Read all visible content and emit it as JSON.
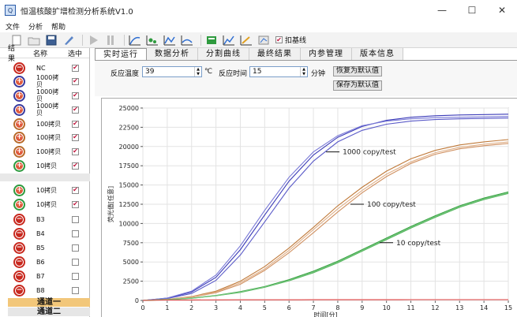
{
  "window": {
    "app_icon": "app-icon",
    "title": "恒温核酸扩增检测分析系统V1.0",
    "minimize": "—",
    "maximize": "☐",
    "close": "✕"
  },
  "menu": [
    "文件",
    "分析",
    "帮助"
  ],
  "toolbar": {
    "icons": [
      "new-file-icon",
      "open-folder-icon",
      "save-icon",
      "brush-icon",
      "play-icon",
      "pause-icon",
      "chart-icon-1",
      "chart-icon-2",
      "chart-icon-3",
      "chart-icon-4",
      "chart-icon-5",
      "chart-icon-6",
      "chart-icon-7",
      "chart-icon-8"
    ],
    "baseline_checked": "✔",
    "baseline_label": "扣基线"
  },
  "left_panel": {
    "headers": [
      "结果",
      "名称",
      "选中"
    ],
    "rows": [
      {
        "result": "minus",
        "color": "#c8281e",
        "name": "NC",
        "checked": "✔"
      },
      {
        "result": "plus",
        "color": "#3a3a9e",
        "name": "1000拷贝",
        "checked": "✔"
      },
      {
        "result": "plus",
        "color": "#3a3a9e",
        "name": "1000拷贝",
        "checked": "✔"
      },
      {
        "result": "plus",
        "color": "#3a3a9e",
        "name": "1000拷贝",
        "checked": "✔"
      },
      {
        "result": "plus",
        "color": "#b86a2a",
        "name": "100拷贝",
        "checked": "✔"
      },
      {
        "result": "plus",
        "color": "#b86a2a",
        "name": "100拷贝",
        "checked": "✔"
      },
      {
        "result": "plus",
        "color": "#b86a2a",
        "name": "100拷贝",
        "checked": "✔"
      },
      {
        "result": "plus",
        "color": "#2e9a3e",
        "name": "10拷贝",
        "checked": "✔"
      },
      {
        "result": "plus",
        "color": "#2e9a3e",
        "name": "10拷贝",
        "checked": "✔"
      },
      {
        "result": "plus",
        "color": "#2e9a3e",
        "name": "10拷贝",
        "checked": "✔"
      },
      {
        "result": "minus",
        "color": "#c8281e",
        "name": "B3",
        "checked": ""
      },
      {
        "result": "minus",
        "color": "#c8281e",
        "name": "B4",
        "checked": ""
      },
      {
        "result": "minus",
        "color": "#c8281e",
        "name": "B5",
        "checked": ""
      },
      {
        "result": "minus",
        "color": "#c8281e",
        "name": "B6",
        "checked": ""
      },
      {
        "result": "minus",
        "color": "#c8281e",
        "name": "B7",
        "checked": ""
      },
      {
        "result": "minus",
        "color": "#c8281e",
        "name": "B8",
        "checked": ""
      }
    ],
    "channel_tabs": [
      "通道一",
      "通道二"
    ],
    "channel_colors": [
      "#f2c77a",
      "#e6e6e6"
    ]
  },
  "tabs": [
    "实时运行",
    "数据分析",
    "分割曲线",
    "最终结果",
    "内参管理",
    "版本信息"
  ],
  "controls": {
    "temp_label": "反应温度",
    "temp_value": "39",
    "temp_unit": "℃",
    "time_label": "反应时间",
    "time_value": "15",
    "time_unit": "分钟",
    "restore_default": "恢复为默认值",
    "save_default": "保存为默认值"
  },
  "chart_data": {
    "type": "line",
    "xlabel": "时间[分]",
    "ylabel": "荧光值[任意]",
    "xlim": [
      0,
      15
    ],
    "ylim": [
      0,
      25000
    ],
    "xticks": [
      "0",
      "1",
      "2",
      "3",
      "4",
      "5",
      "6",
      "7",
      "8",
      "9",
      "10",
      "11",
      "12",
      "13",
      "14",
      "15"
    ],
    "yticks": [
      "0",
      "2500",
      "5000",
      "7500",
      "10000",
      "12500",
      "15000",
      "17500",
      "20000",
      "22500",
      "25000"
    ],
    "grid": true,
    "annotations": [
      {
        "text": "1000 copy/test",
        "x": 8.2,
        "y": 19300
      },
      {
        "text": "100 copy/test",
        "x": 9.2,
        "y": 12500
      },
      {
        "text": "10 copy/test",
        "x": 10.4,
        "y": 7500
      }
    ],
    "series": [
      {
        "color": "#3b3bb8",
        "x": [
          0,
          1,
          2,
          3,
          4,
          5,
          6,
          7,
          8,
          9,
          10,
          11,
          12,
          13,
          14,
          15
        ],
        "y": [
          0,
          300,
          1100,
          3000,
          6600,
          11100,
          15500,
          18900,
          21200,
          22600,
          23400,
          23800,
          24000,
          24100,
          24150,
          24200
        ]
      },
      {
        "color": "#5a5ac8",
        "x": [
          0,
          1,
          2,
          3,
          4,
          5,
          6,
          7,
          8,
          9,
          10,
          11,
          12,
          13,
          14,
          15
        ],
        "y": [
          0,
          250,
          900,
          2600,
          5900,
          10200,
          14600,
          18100,
          20600,
          22100,
          22900,
          23300,
          23500,
          23600,
          23650,
          23700
        ]
      },
      {
        "color": "#7878d6",
        "x": [
          0,
          1,
          2,
          3,
          4,
          5,
          6,
          7,
          8,
          9,
          10,
          11,
          12,
          13,
          14,
          15
        ],
        "y": [
          0,
          320,
          1200,
          3300,
          7100,
          11700,
          16000,
          19300,
          21400,
          22700,
          23300,
          23600,
          23750,
          23800,
          23850,
          23900
        ]
      },
      {
        "color": "#c07a3a",
        "x": [
          0,
          1,
          2,
          3,
          4,
          5,
          6,
          7,
          8,
          9,
          10,
          11,
          12,
          13,
          14,
          15
        ],
        "y": [
          0,
          150,
          500,
          1200,
          2500,
          4400,
          6800,
          9500,
          12300,
          14700,
          16800,
          18400,
          19500,
          20200,
          20600,
          20900
        ]
      },
      {
        "color": "#d09060",
        "x": [
          0,
          1,
          2,
          3,
          4,
          5,
          6,
          7,
          8,
          9,
          10,
          11,
          12,
          13,
          14,
          15
        ],
        "y": [
          0,
          120,
          420,
          1000,
          2100,
          3900,
          6200,
          8800,
          11500,
          14000,
          16100,
          17800,
          19000,
          19700,
          20100,
          20400
        ]
      },
      {
        "color": "#e0b088",
        "x": [
          0,
          1,
          2,
          3,
          4,
          5,
          6,
          7,
          8,
          9,
          10,
          11,
          12,
          13,
          14,
          15
        ],
        "y": [
          0,
          130,
          450,
          1100,
          2300,
          4100,
          6500,
          9200,
          11900,
          14300,
          16400,
          18000,
          19200,
          19900,
          20300,
          20600
        ]
      },
      {
        "color": "#2f9e3a",
        "x": [
          0,
          1,
          2,
          3,
          4,
          5,
          6,
          7,
          8,
          9,
          10,
          11,
          12,
          13,
          14,
          15
        ],
        "y": [
          0,
          100,
          300,
          650,
          1150,
          1800,
          2700,
          3800,
          5100,
          6600,
          8100,
          9600,
          11000,
          12300,
          13300,
          14100
        ]
      },
      {
        "color": "#4cb356",
        "x": [
          0,
          1,
          2,
          3,
          4,
          5,
          6,
          7,
          8,
          9,
          10,
          11,
          12,
          13,
          14,
          15
        ],
        "y": [
          0,
          90,
          280,
          600,
          1050,
          1700,
          2550,
          3600,
          4900,
          6400,
          7900,
          9400,
          10800,
          12100,
          13100,
          13900
        ]
      },
      {
        "color": "#76c67e",
        "x": [
          0,
          1,
          2,
          3,
          4,
          5,
          6,
          7,
          8,
          9,
          10,
          11,
          12,
          13,
          14,
          15
        ],
        "y": [
          0,
          95,
          290,
          620,
          1100,
          1750,
          2600,
          3700,
          5000,
          6500,
          8000,
          9500,
          10900,
          12200,
          13200,
          14000
        ]
      },
      {
        "color": "#e04040",
        "x": [
          0,
          1,
          2,
          3,
          4,
          5,
          6,
          7,
          8,
          9,
          10,
          11,
          12,
          13,
          14,
          15
        ],
        "y": [
          0,
          50,
          60,
          70,
          80,
          80,
          80,
          90,
          90,
          90,
          90,
          100,
          100,
          100,
          100,
          100
        ]
      }
    ]
  }
}
